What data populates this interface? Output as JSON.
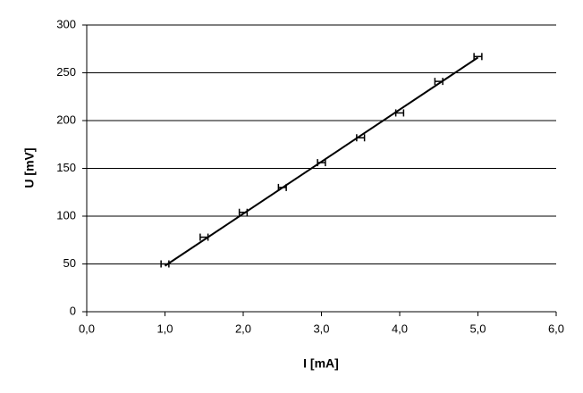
{
  "chart_data": {
    "type": "scatter",
    "x_label": "I [mA]",
    "y_label": "U [mV]",
    "series": [
      {
        "color": "#000000",
        "x": [
          1.0,
          1.5,
          2.0,
          2.5,
          3.0,
          3.5,
          4.0,
          4.5,
          5.0
        ],
        "values": [
          50,
          78,
          104,
          130,
          156,
          182,
          208,
          241,
          267
        ],
        "x_errors": [
          0.05,
          0.05,
          0.05,
          0.05,
          0.05,
          0.05,
          0.05,
          0.05,
          0.05
        ]
      }
    ],
    "trendline": {
      "color": "#000000",
      "x": [
        1.0,
        5.0
      ],
      "values": [
        48,
        266
      ]
    },
    "xlim": [
      0,
      6
    ],
    "ylim": [
      0,
      300
    ],
    "xticks": [
      {
        "value": 0,
        "label": "0,0"
      },
      {
        "value": 1,
        "label": "1,0"
      },
      {
        "value": 2,
        "label": "2,0"
      },
      {
        "value": 3,
        "label": "3,0"
      },
      {
        "value": 4,
        "label": "4,0"
      },
      {
        "value": 5,
        "label": "5,0"
      },
      {
        "value": 6,
        "label": "6,0"
      }
    ],
    "yticks": [
      0,
      50,
      100,
      150,
      200,
      250,
      300
    ],
    "grid": true
  }
}
